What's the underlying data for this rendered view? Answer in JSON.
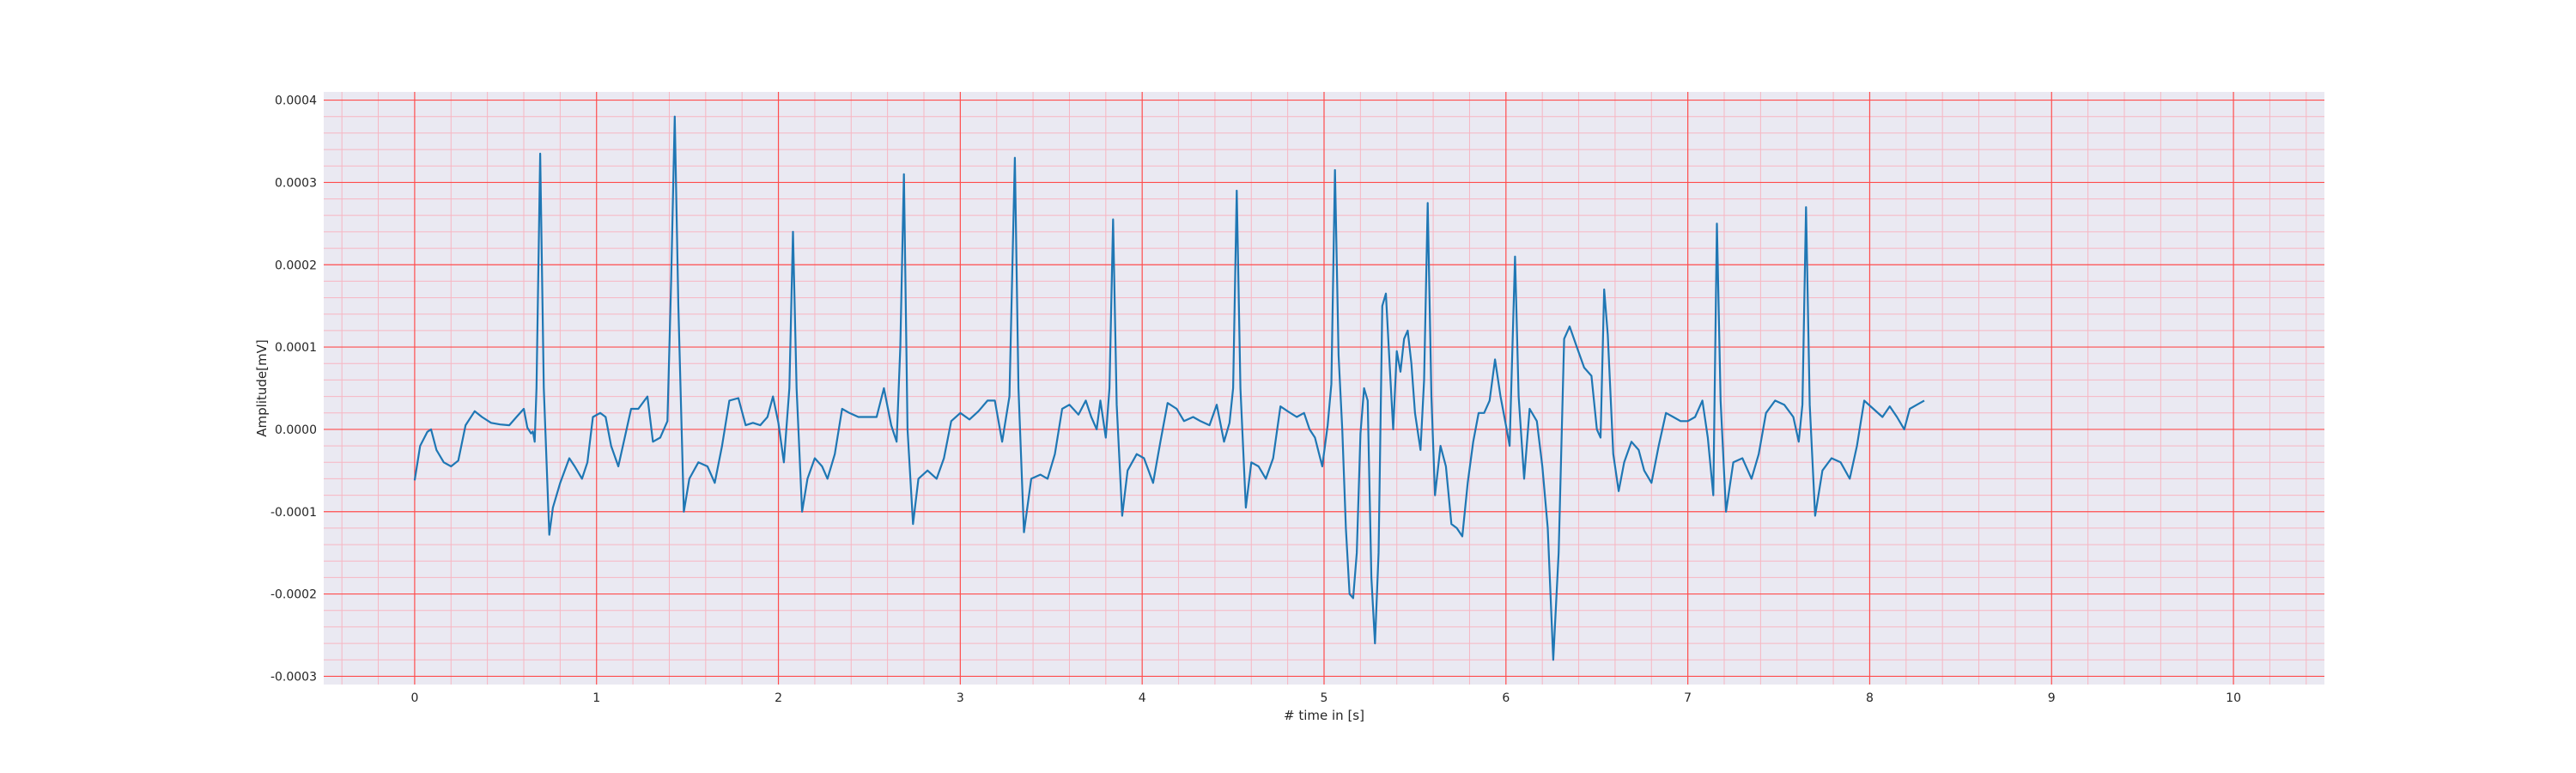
{
  "chart_data": {
    "type": "line",
    "xlabel": "# time in [s]",
    "ylabel": "Amplitude[mV]",
    "xlim": [
      -0.5,
      10.5
    ],
    "ylim": [
      -0.00031,
      0.00041
    ],
    "grid": true,
    "legend": "none",
    "x_ticks": [
      0,
      1,
      2,
      3,
      4,
      5,
      6,
      7,
      8,
      9,
      10
    ],
    "y_ticks": [
      -0.0003,
      -0.0002,
      -0.0001,
      0.0,
      0.0001,
      0.0002,
      0.0003,
      0.0004
    ],
    "x_tick_labels": [
      "0",
      "1",
      "2",
      "3",
      "4",
      "5",
      "6",
      "7",
      "8",
      "9",
      "10"
    ],
    "y_tick_labels": [
      "-0.0003",
      "-0.0002",
      "-0.0001",
      "0.0000",
      "0.0001",
      "0.0002",
      "0.0003",
      "0.0004"
    ],
    "colors": {
      "line": "#1f77b4",
      "major_grid": "#ff4d4d",
      "minor_grid": "#f7b6c2",
      "plot_bg": "#eae9f2"
    },
    "series": [
      {
        "values": [
          [
            0.0,
            -6.2e-05
          ],
          [
            0.03,
            -2e-05
          ],
          [
            0.07,
            -3e-06
          ],
          [
            0.09,
            0.0
          ],
          [
            0.12,
            -2.5e-05
          ],
          [
            0.16,
            -4e-05
          ],
          [
            0.2,
            -4.5e-05
          ],
          [
            0.24,
            -3.8e-05
          ],
          [
            0.28,
            5e-06
          ],
          [
            0.33,
            2.2e-05
          ],
          [
            0.37,
            1.5e-05
          ],
          [
            0.42,
            8e-06
          ],
          [
            0.47,
            6e-06
          ],
          [
            0.52,
            5e-06
          ],
          [
            0.56,
            1.5e-05
          ],
          [
            0.6,
            2.5e-05
          ],
          [
            0.62,
            2e-06
          ],
          [
            0.64,
            -5e-06
          ],
          [
            0.65,
            -2.5e-06
          ],
          [
            0.66,
            -1.5e-05
          ],
          [
            0.67,
            5e-05
          ],
          [
            0.69,
            0.000335
          ],
          [
            0.71,
            5e-05
          ],
          [
            0.74,
            -0.000128
          ],
          [
            0.76,
            -9.5e-05
          ],
          [
            0.8,
            -6.5e-05
          ],
          [
            0.85,
            -3.5e-05
          ],
          [
            0.88,
            -4.5e-05
          ],
          [
            0.92,
            -6e-05
          ],
          [
            0.95,
            -4e-05
          ],
          [
            0.98,
            1.5e-05
          ],
          [
            1.02,
            2e-05
          ],
          [
            1.05,
            1.5e-05
          ],
          [
            1.08,
            -2e-05
          ],
          [
            1.12,
            -4.5e-05
          ],
          [
            1.15,
            -1.5e-05
          ],
          [
            1.19,
            2.5e-05
          ],
          [
            1.23,
            2.5e-05
          ],
          [
            1.28,
            4e-05
          ],
          [
            1.31,
            -1.5e-05
          ],
          [
            1.35,
            -1e-05
          ],
          [
            1.39,
            1e-05
          ],
          [
            1.41,
            0.00018
          ],
          [
            1.43,
            0.00038
          ],
          [
            1.45,
            0.00015
          ],
          [
            1.48,
            -0.0001
          ],
          [
            1.51,
            -6e-05
          ],
          [
            1.56,
            -4e-05
          ],
          [
            1.61,
            -4.5e-05
          ],
          [
            1.65,
            -6.5e-05
          ],
          [
            1.69,
            -2e-05
          ],
          [
            1.73,
            3.5e-05
          ],
          [
            1.78,
            3.8e-05
          ],
          [
            1.82,
            5e-06
          ],
          [
            1.86,
            8e-06
          ],
          [
            1.9,
            5e-06
          ],
          [
            1.94,
            1.5e-05
          ],
          [
            1.97,
            4e-05
          ],
          [
            2.0,
            8e-06
          ],
          [
            2.03,
            -4e-05
          ],
          [
            2.06,
            5e-05
          ],
          [
            2.08,
            0.00024
          ],
          [
            2.1,
            5e-05
          ],
          [
            2.13,
            -0.0001
          ],
          [
            2.16,
            -6e-05
          ],
          [
            2.2,
            -3.5e-05
          ],
          [
            2.24,
            -4.5e-05
          ],
          [
            2.27,
            -6e-05
          ],
          [
            2.31,
            -3e-05
          ],
          [
            2.35,
            2.5e-05
          ],
          [
            2.39,
            2e-05
          ],
          [
            2.44,
            1.5e-05
          ],
          [
            2.49,
            1.5e-05
          ],
          [
            2.54,
            1.5e-05
          ],
          [
            2.58,
            5e-05
          ],
          [
            2.62,
            5e-06
          ],
          [
            2.65,
            -1.5e-05
          ],
          [
            2.67,
            0.0001
          ],
          [
            2.69,
            0.00031
          ],
          [
            2.71,
            0.0
          ],
          [
            2.74,
            -0.000115
          ],
          [
            2.77,
            -6e-05
          ],
          [
            2.82,
            -5e-05
          ],
          [
            2.87,
            -6e-05
          ],
          [
            2.91,
            -3.5e-05
          ],
          [
            2.95,
            1e-05
          ],
          [
            3.0,
            2e-05
          ],
          [
            3.05,
            1.2e-05
          ],
          [
            3.1,
            2.2e-05
          ],
          [
            3.15,
            3.5e-05
          ],
          [
            3.19,
            3.5e-05
          ],
          [
            3.23,
            -1.5e-05
          ],
          [
            3.27,
            4e-05
          ],
          [
            3.3,
            0.00033
          ],
          [
            3.32,
            5e-05
          ],
          [
            3.35,
            -0.000125
          ],
          [
            3.39,
            -6e-05
          ],
          [
            3.44,
            -5.5e-05
          ],
          [
            3.48,
            -6e-05
          ],
          [
            3.52,
            -3e-05
          ],
          [
            3.56,
            2.5e-05
          ],
          [
            3.6,
            3e-05
          ],
          [
            3.65,
            1.8e-05
          ],
          [
            3.69,
            3.5e-05
          ],
          [
            3.72,
            1.5e-05
          ],
          [
            3.75,
            0.0
          ],
          [
            3.77,
            3.5e-05
          ],
          [
            3.8,
            -1e-05
          ],
          [
            3.82,
            5e-05
          ],
          [
            3.84,
            0.000255
          ],
          [
            3.86,
            3e-05
          ],
          [
            3.89,
            -0.000105
          ],
          [
            3.92,
            -5e-05
          ],
          [
            3.97,
            -3e-05
          ],
          [
            4.01,
            -3.5e-05
          ],
          [
            4.06,
            -6.5e-05
          ],
          [
            4.1,
            -1.5e-05
          ],
          [
            4.14,
            3.2e-05
          ],
          [
            4.19,
            2.5e-05
          ],
          [
            4.23,
            1e-05
          ],
          [
            4.28,
            1.5e-05
          ],
          [
            4.32,
            1e-05
          ],
          [
            4.37,
            5e-06
          ],
          [
            4.41,
            3e-05
          ],
          [
            4.45,
            -1.5e-05
          ],
          [
            4.48,
            8e-06
          ],
          [
            4.5,
            5e-05
          ],
          [
            4.52,
            0.00029
          ],
          [
            4.54,
            5e-05
          ],
          [
            4.57,
            -9.5e-05
          ],
          [
            4.6,
            -4e-05
          ],
          [
            4.64,
            -4.5e-05
          ],
          [
            4.68,
            -6e-05
          ],
          [
            4.72,
            -3.5e-05
          ],
          [
            4.76,
            2.8e-05
          ],
          [
            4.8,
            2.2e-05
          ],
          [
            4.85,
            1.5e-05
          ],
          [
            4.89,
            2e-05
          ],
          [
            4.92,
            0.0
          ],
          [
            4.95,
            -1e-05
          ],
          [
            4.99,
            -4.5e-05
          ],
          [
            5.02,
            5e-06
          ],
          [
            5.04,
            5.5e-05
          ],
          [
            5.06,
            0.000315
          ],
          [
            5.08,
            9e-05
          ],
          [
            5.1,
            0.0
          ],
          [
            5.12,
            -0.00012
          ],
          [
            5.14,
            -0.0002
          ],
          [
            5.16,
            -0.000205
          ],
          [
            5.18,
            -0.00015
          ],
          [
            5.2,
            -5e-06
          ],
          [
            5.22,
            5e-05
          ],
          [
            5.24,
            3.5e-05
          ],
          [
            5.26,
            -0.00018
          ],
          [
            5.28,
            -0.00026
          ],
          [
            5.3,
            -0.00015
          ],
          [
            5.32,
            0.00015
          ],
          [
            5.34,
            0.000165
          ],
          [
            5.36,
            8e-05
          ],
          [
            5.38,
            0.0
          ],
          [
            5.4,
            9.5e-05
          ],
          [
            5.42,
            7e-05
          ],
          [
            5.44,
            0.00011
          ],
          [
            5.46,
            0.00012
          ],
          [
            5.48,
            8e-05
          ],
          [
            5.5,
            2e-05
          ],
          [
            5.53,
            -2.5e-05
          ],
          [
            5.55,
            6e-05
          ],
          [
            5.57,
            0.000275
          ],
          [
            5.59,
            4e-05
          ],
          [
            5.61,
            -8e-05
          ],
          [
            5.64,
            -2e-05
          ],
          [
            5.67,
            -4.5e-05
          ],
          [
            5.7,
            -0.000115
          ],
          [
            5.73,
            -0.00012
          ],
          [
            5.76,
            -0.00013
          ],
          [
            5.79,
            -6.5e-05
          ],
          [
            5.82,
            -1.5e-05
          ],
          [
            5.85,
            2e-05
          ],
          [
            5.88,
            2e-05
          ],
          [
            5.91,
            3.5e-05
          ],
          [
            5.94,
            8.5e-05
          ],
          [
            5.97,
            4e-05
          ],
          [
            6.0,
            5e-06
          ],
          [
            6.02,
            -2e-05
          ],
          [
            6.05,
            0.00021
          ],
          [
            6.07,
            4e-05
          ],
          [
            6.1,
            -6e-05
          ],
          [
            6.13,
            2.5e-05
          ],
          [
            6.17,
            1e-05
          ],
          [
            6.2,
            -4.5e-05
          ],
          [
            6.23,
            -0.00012
          ],
          [
            6.26,
            -0.00028
          ],
          [
            6.29,
            -0.00015
          ],
          [
            6.32,
            0.00011
          ],
          [
            6.35,
            0.000125
          ],
          [
            6.39,
            0.0001
          ],
          [
            6.43,
            7.5e-05
          ],
          [
            6.47,
            6.5e-05
          ],
          [
            6.5,
            0.0
          ],
          [
            6.52,
            -1e-05
          ],
          [
            6.54,
            0.00017
          ],
          [
            6.56,
            0.000115
          ],
          [
            6.59,
            -3e-05
          ],
          [
            6.62,
            -7.5e-05
          ],
          [
            6.65,
            -4e-05
          ],
          [
            6.69,
            -1.5e-05
          ],
          [
            6.73,
            -2.5e-05
          ],
          [
            6.76,
            -5e-05
          ],
          [
            6.8,
            -6.5e-05
          ],
          [
            6.84,
            -2e-05
          ],
          [
            6.88,
            2e-05
          ],
          [
            6.92,
            1.5e-05
          ],
          [
            6.96,
            1e-05
          ],
          [
            7.0,
            1e-05
          ],
          [
            7.04,
            1.5e-05
          ],
          [
            7.08,
            3.5e-05
          ],
          [
            7.11,
            -1e-05
          ],
          [
            7.14,
            -8e-05
          ],
          [
            7.16,
            0.00025
          ],
          [
            7.18,
            3.5e-05
          ],
          [
            7.21,
            -0.0001
          ],
          [
            7.25,
            -4e-05
          ],
          [
            7.3,
            -3.5e-05
          ],
          [
            7.35,
            -6e-05
          ],
          [
            7.39,
            -3e-05
          ],
          [
            7.43,
            2e-05
          ],
          [
            7.48,
            3.5e-05
          ],
          [
            7.53,
            3e-05
          ],
          [
            7.58,
            1.5e-05
          ],
          [
            7.61,
            -1.5e-05
          ],
          [
            7.63,
            3e-05
          ],
          [
            7.65,
            0.00027
          ],
          [
            7.67,
            3e-05
          ],
          [
            7.7,
            -0.000105
          ],
          [
            7.74,
            -5e-05
          ],
          [
            7.79,
            -3.5e-05
          ],
          [
            7.84,
            -4e-05
          ],
          [
            7.89,
            -6e-05
          ],
          [
            7.93,
            -2e-05
          ],
          [
            7.97,
            3.5e-05
          ],
          [
            8.02,
            2.5e-05
          ],
          [
            8.07,
            1.5e-05
          ],
          [
            8.11,
            2.8e-05
          ],
          [
            8.15,
            1.5e-05
          ],
          [
            8.19,
            0.0
          ],
          [
            8.22,
            2.5e-05
          ],
          [
            8.26,
            3e-05
          ],
          [
            8.3,
            3.5e-05
          ]
        ]
      }
    ]
  }
}
